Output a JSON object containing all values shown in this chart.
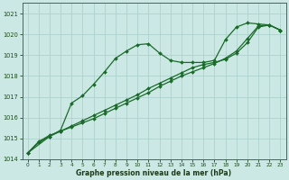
{
  "xlabel": "Graphe pression niveau de la mer (hPa)",
  "bg_color": "#cce8e4",
  "grid_color": "#a8cdc9",
  "line_color": "#1a6b2a",
  "ylim": [
    1014,
    1021.5
  ],
  "xlim": [
    -0.5,
    23.5
  ],
  "yticks": [
    1014,
    1015,
    1016,
    1017,
    1018,
    1019,
    1020,
    1021
  ],
  "xticks": [
    0,
    1,
    2,
    3,
    4,
    5,
    6,
    7,
    8,
    9,
    10,
    11,
    12,
    13,
    14,
    15,
    16,
    17,
    18,
    19,
    20,
    21,
    22,
    23
  ],
  "line1_x": [
    0,
    1,
    2,
    3,
    4,
    5,
    6,
    7,
    8,
    9,
    10,
    11,
    12,
    13,
    14,
    15,
    16,
    17,
    18,
    19,
    20,
    21,
    22,
    23
  ],
  "line1_y": [
    1014.3,
    1014.8,
    1015.1,
    1015.4,
    1016.7,
    1017.05,
    1017.6,
    1018.2,
    1018.85,
    1019.2,
    1019.5,
    1019.55,
    1019.1,
    1018.75,
    1018.65,
    1018.65,
    1018.65,
    1018.75,
    1019.75,
    1020.35,
    1020.55,
    1020.5,
    1020.45,
    1020.2
  ],
  "line2_x": [
    0,
    1,
    2,
    3,
    4,
    5,
    6,
    7,
    8,
    9,
    10,
    11,
    12,
    13,
    14,
    15,
    16,
    17,
    18,
    19,
    20,
    21,
    22,
    23
  ],
  "line2_y": [
    1014.3,
    1014.85,
    1015.15,
    1015.35,
    1015.55,
    1015.75,
    1015.95,
    1016.2,
    1016.45,
    1016.7,
    1016.95,
    1017.2,
    1017.5,
    1017.75,
    1018.0,
    1018.2,
    1018.4,
    1018.6,
    1018.85,
    1019.2,
    1019.8,
    1020.4,
    1020.45,
    1020.2
  ],
  "line3_x": [
    0,
    2,
    3,
    4,
    5,
    6,
    7,
    8,
    9,
    10,
    11,
    12,
    13,
    14,
    15,
    16,
    17,
    18,
    19,
    20,
    21,
    22,
    23
  ],
  "line3_y": [
    1014.3,
    1015.1,
    1015.35,
    1015.6,
    1015.85,
    1016.1,
    1016.35,
    1016.6,
    1016.85,
    1017.1,
    1017.4,
    1017.65,
    1017.9,
    1018.15,
    1018.4,
    1018.55,
    1018.65,
    1018.8,
    1019.1,
    1019.6,
    1020.35,
    1020.45,
    1020.2
  ]
}
